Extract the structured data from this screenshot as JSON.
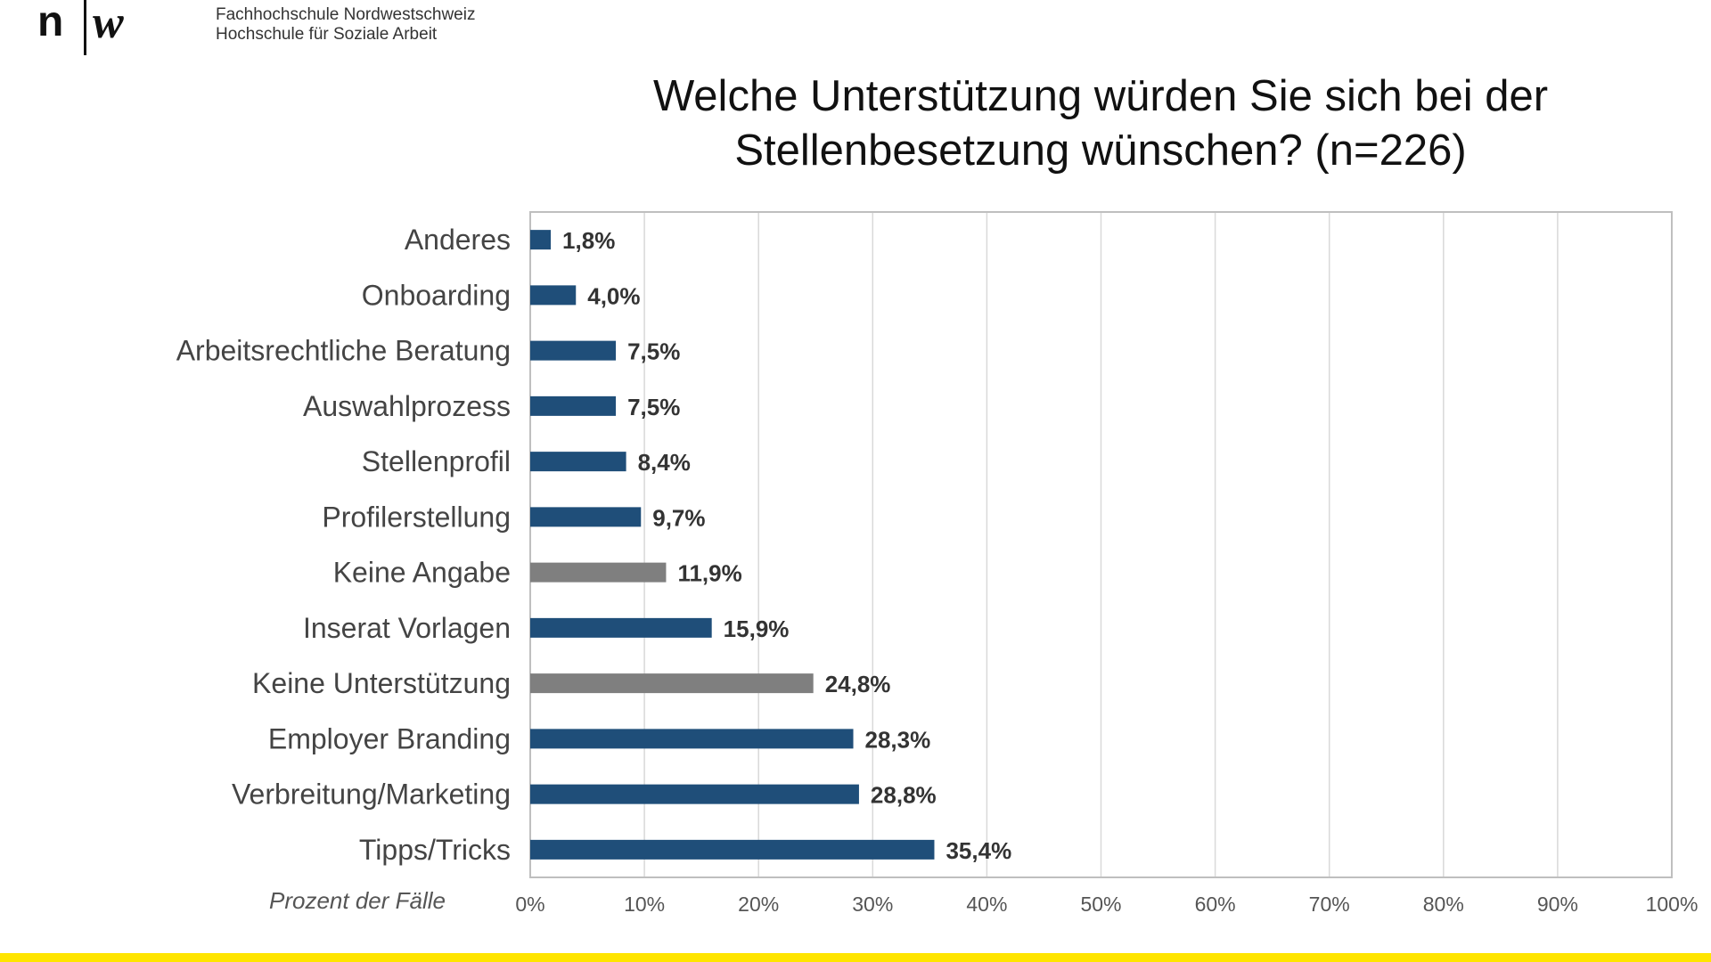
{
  "header": {
    "logo_lines": [
      "Fachhochschule Nordwestschweiz",
      "Hochschule für Soziale Arbeit"
    ],
    "logo_mark_text": "n|w"
  },
  "colors": {
    "primary_bar": "#1f4e79",
    "secondary_bar": "#7f7f7f",
    "grid": "#d9d9d9",
    "frame": "#bfbfbf",
    "accent_bottom": "#ffe500"
  },
  "chart_data": {
    "type": "bar",
    "orientation": "horizontal",
    "title": "Welche Unterstützung würden Sie sich bei der Stellenbesetzung wünschen? (n=226)",
    "title_lines": [
      "Welche Unterstützung würden Sie sich bei der",
      "Stellenbesetzung wünschen? (n=226)"
    ],
    "xlabel": "Prozent der Fälle",
    "ylabel": "",
    "xlim": [
      0,
      100
    ],
    "xticks": [
      "0%",
      "10%",
      "20%",
      "30%",
      "40%",
      "50%",
      "60%",
      "70%",
      "80%",
      "90%",
      "100%"
    ],
    "grid": true,
    "categories": [
      "Anderes",
      "Onboarding",
      "Arbeitsrechtliche Beratung",
      "Auswahlprozess",
      "Stellenprofil",
      "Profilerstellung",
      "Keine Angabe",
      "Inserat Vorlagen",
      "Keine Unterstützung",
      "Employer Branding",
      "Verbreitung/Marketing",
      "Tipps/Tricks"
    ],
    "values": [
      1.8,
      4.0,
      7.5,
      7.5,
      8.4,
      9.7,
      11.9,
      15.9,
      24.8,
      28.3,
      28.8,
      35.4
    ],
    "value_labels": [
      "1,8%",
      "4,0%",
      "7,5%",
      "7,5%",
      "8,4%",
      "9,7%",
      "11,9%",
      "15,9%",
      "24,8%",
      "28,3%",
      "28,8%",
      "35,4%"
    ],
    "bar_group": [
      "primary",
      "primary",
      "primary",
      "primary",
      "primary",
      "primary",
      "secondary",
      "primary",
      "secondary",
      "primary",
      "primary",
      "primary"
    ]
  }
}
